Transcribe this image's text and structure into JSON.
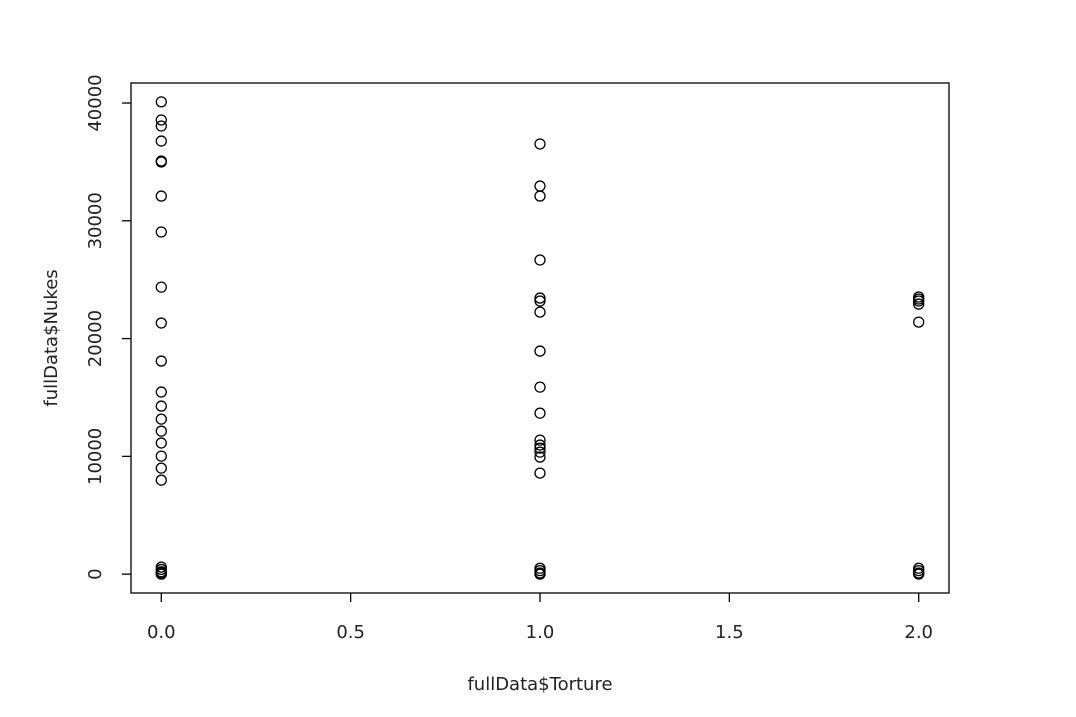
{
  "chart_data": {
    "type": "scatter",
    "xlabel": "fullData$Torture",
    "ylabel": "fullData$Nukes",
    "series": [
      {
        "color": "#000000",
        "x": [
          0,
          0,
          0,
          0,
          0,
          0,
          0,
          0,
          0,
          0,
          0,
          0,
          0,
          0,
          0,
          0,
          0,
          0,
          0,
          0,
          0,
          0,
          0,
          0,
          1,
          1,
          1,
          1,
          1,
          1,
          1,
          1,
          1,
          1,
          1,
          1,
          1,
          1,
          1,
          1,
          1,
          1,
          1,
          1,
          2,
          2,
          2,
          2,
          2,
          2,
          2,
          2,
          2
        ],
        "values": [
          40100,
          38560,
          38050,
          36770,
          35080,
          34990,
          32100,
          29050,
          24370,
          21320,
          18090,
          15460,
          14270,
          13160,
          12140,
          11130,
          10020,
          9000,
          7980,
          600,
          400,
          200,
          100,
          0,
          36520,
          32950,
          32100,
          26670,
          23440,
          23190,
          22250,
          18940,
          15880,
          13670,
          11380,
          10960,
          10700,
          10360,
          9940,
          8580,
          500,
          300,
          100,
          0,
          23530,
          23360,
          23190,
          22930,
          21400,
          500,
          300,
          100,
          0
        ]
      }
    ],
    "xlim": [
      -0.08,
      2.08
    ],
    "ylim": [
      -1600,
      41700
    ],
    "xticks": [
      {
        "value": 0,
        "label": "0.0"
      },
      0.5,
      {
        "value": 1,
        "label": "1.0"
      },
      1.5,
      {
        "value": 2,
        "label": "2.0"
      }
    ],
    "yticks": [
      0,
      10000,
      20000,
      30000,
      40000
    ]
  }
}
